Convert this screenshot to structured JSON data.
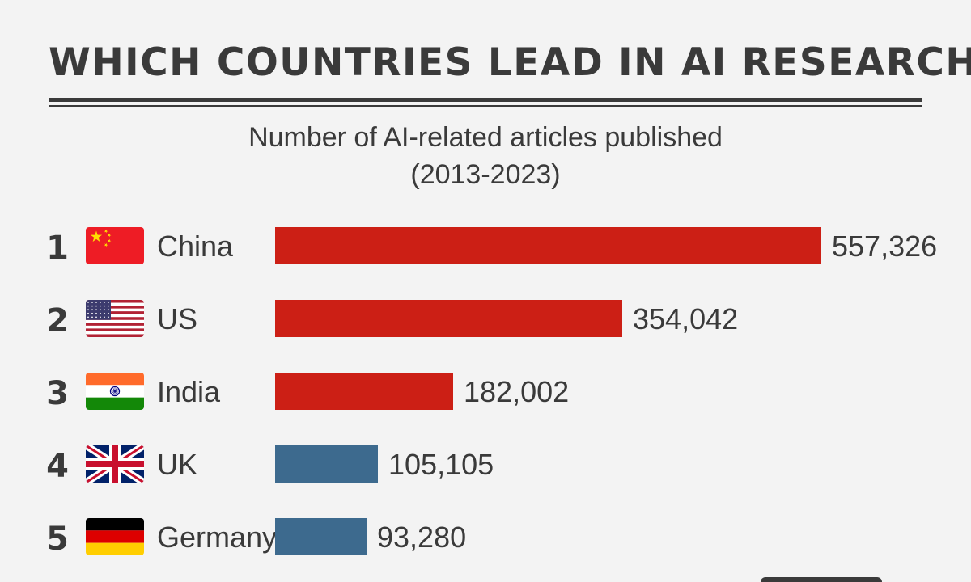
{
  "header": {
    "title": "WHICH COUNTRIES LEAD IN AI RESEARCH?",
    "subtitle_line1": "Number of AI-related articles published",
    "subtitle_line2": "(2013-2023)"
  },
  "colors": {
    "highlight_bar": "#cc1f15",
    "other_bar": "#3d6a8e",
    "text": "#3a3a3a",
    "background": "#f3f3f3"
  },
  "chart_data": {
    "type": "bar",
    "orientation": "horizontal",
    "title": "WHICH COUNTRIES LEAD IN AI RESEARCH?",
    "subtitle": "Number of AI-related articles published (2013-2023)",
    "categories": [
      "China",
      "US",
      "India",
      "UK",
      "Germany"
    ],
    "values": [
      557326,
      354042,
      182002,
      105105,
      93280
    ],
    "value_labels": [
      "557,326",
      "354,042",
      "182,002",
      "105,105",
      "93,280"
    ],
    "ranks": [
      "1",
      "2",
      "3",
      "4",
      "5"
    ],
    "flags": [
      "china-flag-icon",
      "us-flag-icon",
      "india-flag-icon",
      "uk-flag-icon",
      "germany-flag-icon"
    ],
    "bar_colors": [
      "#cc1f15",
      "#cc1f15",
      "#cc1f15",
      "#3d6a8e",
      "#3d6a8e"
    ],
    "xlim": [
      0,
      557326
    ],
    "grid": false,
    "legend": "none"
  }
}
